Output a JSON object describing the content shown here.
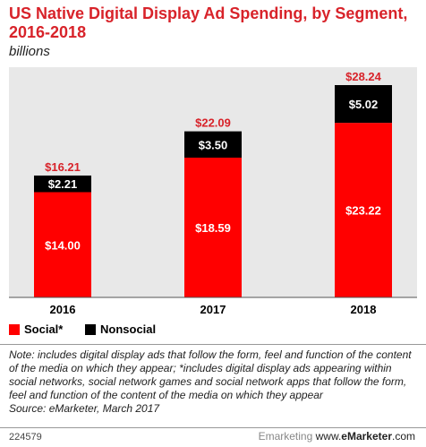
{
  "title": "US Native Digital Display Ad Spending, by Segment, 2016-2018",
  "subtitle": "billions",
  "chart_data": {
    "type": "bar",
    "stacked": true,
    "categories": [
      "2016",
      "2017",
      "2018"
    ],
    "series": [
      {
        "name": "Social*",
        "values": [
          14.0,
          18.59,
          23.22
        ],
        "labels": [
          "$14.00",
          "$18.59",
          "$23.22"
        ]
      },
      {
        "name": "Nonsocial",
        "values": [
          2.21,
          3.5,
          5.02
        ],
        "labels": [
          "$2.21",
          "$3.50",
          "$5.02"
        ]
      }
    ],
    "totals": [
      16.21,
      22.09,
      28.24
    ],
    "total_labels": [
      "$16.21",
      "$22.09",
      "$28.24"
    ],
    "ylim": [
      0,
      28.24
    ],
    "legend_position": "bottom-left",
    "colors": {
      "social": "#ff0000",
      "nonsocial": "#000000",
      "total_label": "#d8232a"
    }
  },
  "legend": {
    "social": "Social*",
    "nonsocial": "Nonsocial"
  },
  "notes": "Note: includes digital display ads that follow the form, feel and function of the content of the media on which they appear; *includes digital display ads appearing within social networks, social network games and social network apps that follow the form, feel and function of the content of the media on which they appear",
  "source": "Source: eMarketer, March 2017",
  "footer": {
    "chart_id": "224579",
    "watermark": "Emarketing",
    "site_prefix": "www.",
    "site_brand": "eMarketer",
    "site_suffix": ".com"
  }
}
